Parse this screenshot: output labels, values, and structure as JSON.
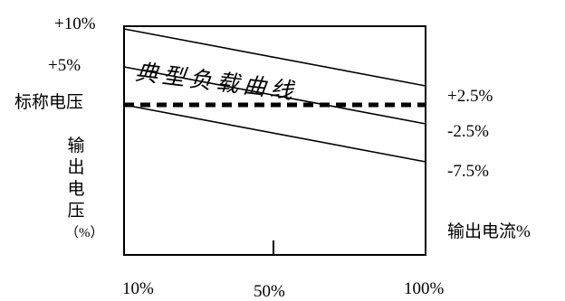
{
  "chart_data": {
    "type": "line",
    "x_ticks": [
      "10%",
      "50%",
      "100%"
    ],
    "y_ticks_left": [
      "+10%",
      "+5%"
    ],
    "nominal_label": "标称电压",
    "right_labels": [
      "+2.5%",
      "-2.5%",
      "-7.5%"
    ],
    "ylabel_chars": [
      "输",
      "出",
      "电",
      "压",
      "（%）"
    ],
    "xlabel": "输出电流%",
    "curve_label": "典型负载曲线",
    "x": [
      10,
      100
    ],
    "series": [
      {
        "values": [
          10,
          2.5
        ]
      },
      {
        "values": [
          5,
          -2.5
        ]
      },
      {
        "values": [
          0,
          0
        ],
        "dashed": true
      },
      {
        "values": [
          0,
          -7.5
        ]
      }
    ],
    "xlim": [
      10,
      100
    ],
    "ylim": [
      -20,
      12
    ],
    "grid": false
  }
}
